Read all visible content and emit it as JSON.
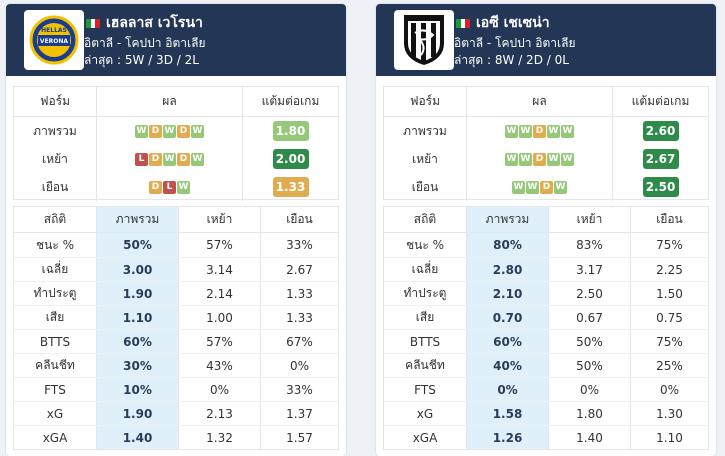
{
  "colors": {
    "header_bg": "#233656",
    "win": "#96c87a",
    "draw": "#e0ac4f",
    "loss": "#c0514f",
    "ppg_green_light": "#96c87a",
    "ppg_green": "#2e8b4a",
    "ppg_orange": "#e0ac4f",
    "overall_col_bg": "#dff0fb"
  },
  "left": {
    "team_name": "เฮลลาส เวโรนา",
    "league": "อิตาลี - โคปปา อิตาเลีย",
    "recent": "ล่าสุด : 5W / 3D / 2L",
    "logo_icon": "hellas-verona-crest",
    "logo_text": "HELLAS VERONA",
    "form_headers": {
      "form": "ฟอร์ม",
      "results": "ผล",
      "ppg": "แต้มต่อเกม"
    },
    "form_rows": [
      {
        "label": "ภาพรวม",
        "results": [
          "W",
          "D",
          "W",
          "D",
          "W"
        ],
        "ppg": "1.80",
        "ppg_color": "#96c87a"
      },
      {
        "label": "เหย้า",
        "results": [
          "L",
          "D",
          "W",
          "D",
          "W"
        ],
        "ppg": "2.00",
        "ppg_color": "#2e8b4a"
      },
      {
        "label": "เยือน",
        "results": [
          "D",
          "L",
          "W"
        ],
        "ppg": "1.33",
        "ppg_color": "#e0ac4f"
      }
    ],
    "stats_headers": {
      "stat": "สถิติ",
      "overall": "ภาพรวม",
      "home": "เหย้า",
      "away": "เยือน"
    },
    "stats_rows": [
      {
        "label": "ชนะ %",
        "overall": "50%",
        "home": "57%",
        "away": "33%"
      },
      {
        "label": "เฉลี่ย",
        "overall": "3.00",
        "home": "3.14",
        "away": "2.67"
      },
      {
        "label": "ทำประตู",
        "overall": "1.90",
        "home": "2.14",
        "away": "1.33"
      },
      {
        "label": "เสีย",
        "overall": "1.10",
        "home": "1.00",
        "away": "1.33"
      },
      {
        "label": "BTTS",
        "overall": "60%",
        "home": "57%",
        "away": "67%"
      },
      {
        "label": "คลีนชีท",
        "overall": "30%",
        "home": "43%",
        "away": "0%"
      },
      {
        "label": "FTS",
        "overall": "10%",
        "home": "0%",
        "away": "33%"
      },
      {
        "label": "xG",
        "overall": "1.90",
        "home": "2.13",
        "away": "1.37"
      },
      {
        "label": "xGA",
        "overall": "1.40",
        "home": "1.32",
        "away": "1.57"
      }
    ]
  },
  "right": {
    "team_name": "เอซี เชเซน่า",
    "league": "อิตาลี - โคปปา อิตาเลีย",
    "recent": "ล่าสุด : 8W / 2D / 0L",
    "logo_icon": "cesena-crest",
    "form_headers": {
      "form": "ฟอร์ม",
      "results": "ผล",
      "ppg": "แต้มต่อเกม"
    },
    "form_rows": [
      {
        "label": "ภาพรวม",
        "results": [
          "W",
          "W",
          "D",
          "W",
          "W"
        ],
        "ppg": "2.60",
        "ppg_color": "#2e8b4a"
      },
      {
        "label": "เหย้า",
        "results": [
          "W",
          "W",
          "D",
          "W",
          "W"
        ],
        "ppg": "2.67",
        "ppg_color": "#2e8b4a"
      },
      {
        "label": "เยือน",
        "results": [
          "W",
          "W",
          "D",
          "W"
        ],
        "ppg": "2.50",
        "ppg_color": "#2e8b4a"
      }
    ],
    "stats_headers": {
      "stat": "สถิติ",
      "overall": "ภาพรวม",
      "home": "เหย้า",
      "away": "เยือน"
    },
    "stats_rows": [
      {
        "label": "ชนะ %",
        "overall": "80%",
        "home": "83%",
        "away": "75%"
      },
      {
        "label": "เฉลี่ย",
        "overall": "2.80",
        "home": "3.17",
        "away": "2.25"
      },
      {
        "label": "ทำประตู",
        "overall": "2.10",
        "home": "2.50",
        "away": "1.50"
      },
      {
        "label": "เสีย",
        "overall": "0.70",
        "home": "0.67",
        "away": "0.75"
      },
      {
        "label": "BTTS",
        "overall": "60%",
        "home": "50%",
        "away": "75%"
      },
      {
        "label": "คลีนชีท",
        "overall": "40%",
        "home": "50%",
        "away": "25%"
      },
      {
        "label": "FTS",
        "overall": "0%",
        "home": "0%",
        "away": "0%"
      },
      {
        "label": "xG",
        "overall": "1.58",
        "home": "1.80",
        "away": "1.30"
      },
      {
        "label": "xGA",
        "overall": "1.26",
        "home": "1.40",
        "away": "1.10"
      }
    ]
  }
}
